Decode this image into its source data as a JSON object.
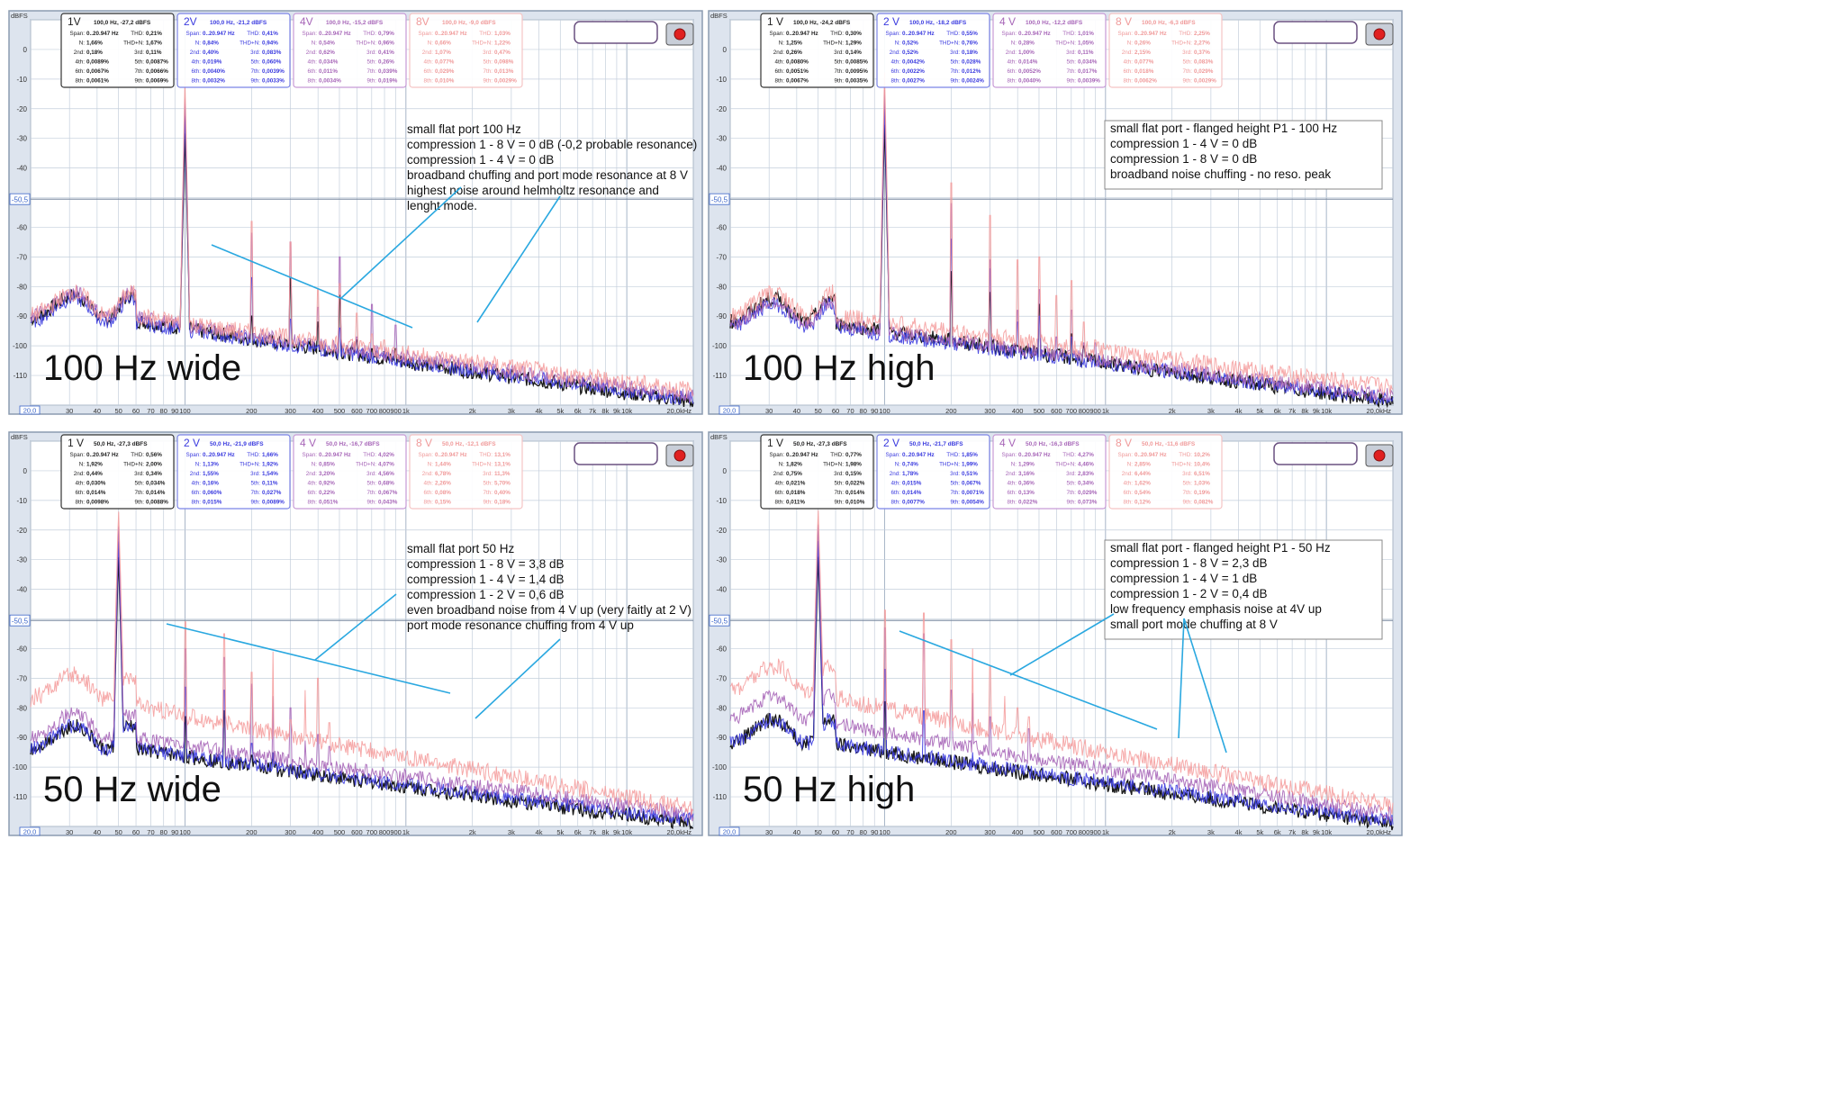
{
  "colors": {
    "v1": "#000000",
    "v2": "#3a3adf",
    "v4": "#a766b8",
    "v8": "#f59a9a",
    "arrow": "#2aa8e0",
    "grid": "#c4cfdc",
    "plot_bg": "#ffffff",
    "frame_bg": "#dde4ee",
    "record": "#e02020"
  },
  "common": {
    "yunit": "dBFS",
    "y_ticks": [
      "0",
      "-10",
      "-20",
      "-30",
      "-40",
      "-60",
      "-70",
      "-80",
      "-90",
      "-100",
      "-110"
    ],
    "y_tick_values": [
      0,
      -10,
      -20,
      -30,
      -40,
      -60,
      -70,
      -80,
      -90,
      -100,
      -110
    ],
    "marker_label": "-50,5",
    "marker_value": -50.5,
    "x_start_label": "20,0",
    "x_end_label": "20,0kHz",
    "x_ticks": [
      {
        "l": "30",
        "v": 30
      },
      {
        "l": "40",
        "v": 40
      },
      {
        "l": "50",
        "v": 50
      },
      {
        "l": "60",
        "v": 60
      },
      {
        "l": "70",
        "v": 70
      },
      {
        "l": "80",
        "v": 80
      },
      {
        "l": "90",
        "v": 90
      },
      {
        "l": "100",
        "v": 100
      },
      {
        "l": "200",
        "v": 200
      },
      {
        "l": "300",
        "v": 300
      },
      {
        "l": "400",
        "v": 400
      },
      {
        "l": "500",
        "v": 500
      },
      {
        "l": "600",
        "v": 600
      },
      {
        "l": "700",
        "v": 700
      },
      {
        "l": "800",
        "v": 800
      },
      {
        "l": "900",
        "v": 900
      },
      {
        "l": "1k",
        "v": 1000
      },
      {
        "l": "2k",
        "v": 2000
      },
      {
        "l": "3k",
        "v": 3000
      },
      {
        "l": "4k",
        "v": 4000
      },
      {
        "l": "5k",
        "v": 5000
      },
      {
        "l": "6k",
        "v": 6000
      },
      {
        "l": "7k",
        "v": 7000
      },
      {
        "l": "8k",
        "v": 8000
      },
      {
        "l": "9k",
        "v": 9000
      },
      {
        "l": "10k",
        "v": 10000
      }
    ],
    "stat_keys": [
      "Span:",
      "THD:",
      "N:",
      "THD+N:",
      "2nd:",
      "3rd:",
      "4th:",
      "5th:",
      "6th:",
      "7th:",
      "8th:",
      "9th:"
    ]
  },
  "chart_data": [
    {
      "type": "line",
      "fundamental_hz": 100,
      "xscale": "log",
      "xlim": [
        20,
        20000
      ],
      "ylim": [
        -120,
        10
      ],
      "label": "100 Hz wide",
      "annotation": [
        "small flat port 100 Hz",
        "compression 1 - 8 V = 0 dB (-0,2 probable resonance)",
        "compression 1 - 4 V = 0 dB",
        "broadband chuffing and port mode resonance at 8 V",
        "highest noise around helmholtz resonance and",
        "lenght mode."
      ],
      "boxed": false,
      "panels": [
        {
          "name": "1V",
          "head": "100,0 Hz, -27,2 dBFS",
          "vals": [
            "0..20.947 Hz",
            "0,21%",
            "1,66%",
            "1,67%",
            "0,18%",
            "0,11%",
            "0,0089%",
            "0,0087%",
            "0,0067%",
            "0,0066%",
            "0,0061%",
            "0,0069%"
          ]
        },
        {
          "name": "2V",
          "head": "100,0 Hz, -21,2 dBFS",
          "vals": [
            "0..20.947 Hz",
            "0,41%",
            "0,84%",
            "0,94%",
            "0,40%",
            "0,083%",
            "0,019%",
            "0,060%",
            "0,0040%",
            "0,0039%",
            "0,0032%",
            "0,0033%"
          ]
        },
        {
          "name": "4V",
          "head": "100,0 Hz, -15,2 dBFS",
          "vals": [
            "0..20.947 Hz",
            "0,79%",
            "0,54%",
            "0,96%",
            "0,62%",
            "0,41%",
            "0,034%",
            "0,26%",
            "0,011%",
            "0,039%",
            "0,0034%",
            "0,019%"
          ]
        },
        {
          "name": "8V",
          "head": "100,0 Hz, -9,0 dBFS",
          "vals": [
            "0..20.947 Hz",
            "1,03%",
            "0,66%",
            "1,22%",
            "1,07%",
            "0,47%",
            "0,077%",
            "0,098%",
            "0,029%",
            "0,013%",
            "0,010%",
            "0,0029%"
          ]
        }
      ],
      "series": [
        {
          "name": "1V",
          "fund_level": -27.2,
          "floor_low": -85,
          "floor_high": -119,
          "harmonics_db": [
            -90,
            -77,
            -92,
            -83,
            -98,
            -101,
            -102,
            -101
          ]
        },
        {
          "name": "2V",
          "fund_level": -21.2,
          "floor_low": -86,
          "floor_high": -118,
          "harmonics_db": [
            -77,
            -91,
            -104,
            -94,
            -117,
            -117,
            -119,
            -119
          ]
        },
        {
          "name": "4V",
          "fund_level": -15.2,
          "floor_low": -84,
          "floor_high": -117,
          "harmonics_db": [
            -62,
            -65,
            -87,
            -70,
            -97,
            -86,
            -108,
            -93
          ]
        },
        {
          "name": "8V",
          "fund_level": -9.0,
          "floor_low": -84,
          "floor_high": -115,
          "harmonics_db": [
            -58,
            -65,
            -81,
            -79,
            -89,
            -96,
            -98,
            -110
          ]
        }
      ]
    },
    {
      "type": "line",
      "fundamental_hz": 100,
      "xscale": "log",
      "xlim": [
        20,
        20000
      ],
      "ylim": [
        -120,
        10
      ],
      "label": "100 Hz high",
      "annotation": [
        "small flat port - flanged height P1 - 100 Hz",
        "compression 1 - 4 V = 0 dB",
        "compression 1 - 8 V = 0 dB",
        "broadband noise chuffing - no reso. peak"
      ],
      "boxed": true,
      "panels": [
        {
          "name": "1 V",
          "head": "100,0 Hz, -24,2 dBFS",
          "vals": [
            "0..20.947 Hz",
            "0,30%",
            "1,25%",
            "1,29%",
            "0,26%",
            "0,14%",
            "0,0080%",
            "0,0085%",
            "0,0051%",
            "0,0095%",
            "0,0067%",
            "0,0035%"
          ]
        },
        {
          "name": "2 V",
          "head": "100,0 Hz, -18,2 dBFS",
          "vals": [
            "0..20.947 Hz",
            "0,55%",
            "0,52%",
            "0,76%",
            "0,52%",
            "0,18%",
            "0,0042%",
            "0,028%",
            "0,0022%",
            "0,012%",
            "0,0027%",
            "0,0024%"
          ]
        },
        {
          "name": "4 V",
          "head": "100,0 Hz, -12,2 dBFS",
          "vals": [
            "0..20.947 Hz",
            "1,01%",
            "0,28%",
            "1,05%",
            "1,00%",
            "0,11%",
            "0,014%",
            "0,034%",
            "0,0052%",
            "0,017%",
            "0,0040%",
            "0,0039%"
          ]
        },
        {
          "name": "8 V",
          "head": "100,0 Hz, -6,3 dBFS",
          "vals": [
            "0..20.947 Hz",
            "2,25%",
            "0,26%",
            "2,27%",
            "2,15%",
            "0,37%",
            "0,077%",
            "0,083%",
            "0,018%",
            "0,029%",
            "0,0062%",
            "0,0029%"
          ]
        }
      ],
      "series": [
        {
          "name": "1 V",
          "fund_level": -24.2,
          "floor_low": -86,
          "floor_high": -119,
          "harmonics_db": [
            -75,
            -82,
            -100,
            -86,
            -102,
            -96,
            -100,
            -108
          ]
        },
        {
          "name": "2 V",
          "fund_level": -18.2,
          "floor_low": -88,
          "floor_high": -118,
          "harmonics_db": [
            -64,
            -74,
            -92,
            -90,
            -112,
            -97,
            -110,
            -110
          ]
        },
        {
          "name": "4 V",
          "fund_level": -12.2,
          "floor_low": -87,
          "floor_high": -117,
          "harmonics_db": [
            -52,
            -71,
            -88,
            -81,
            -97,
            -88,
            -99,
            -99
          ]
        },
        {
          "name": "8 V",
          "fund_level": -6.3,
          "floor_low": -84,
          "floor_high": -114,
          "harmonics_db": [
            -45,
            -56,
            -71,
            -70,
            -83,
            -78,
            -92,
            -98
          ]
        }
      ]
    },
    {
      "type": "line",
      "fundamental_hz": 50,
      "xscale": "log",
      "xlim": [
        20,
        20000
      ],
      "ylim": [
        -120,
        10
      ],
      "label": "50 Hz wide",
      "annotation": [
        "small flat port 50 Hz",
        "compression 1 - 8 V = 3,8 dB",
        "compression 1 - 4 V = 1,4 dB",
        "compression 1 - 2 V = 0,6 dB",
        "even broadband noise from 4 V up (very faitly at 2 V)",
        "port mode resonance chuffing from 4 V up"
      ],
      "boxed": false,
      "panels": [
        {
          "name": "1 V",
          "head": "50,0 Hz, -27,3 dBFS",
          "vals": [
            "0..20.947 Hz",
            "0,56%",
            "1,92%",
            "2,00%",
            "0,44%",
            "0,34%",
            "0,030%",
            "0,034%",
            "0,014%",
            "0,014%",
            "0,0098%",
            "0,0088%"
          ]
        },
        {
          "name": "2 V",
          "head": "50,0 Hz, -21,9 dBFS",
          "vals": [
            "0..20.947 Hz",
            "1,66%",
            "1,13%",
            "1,92%",
            "1,55%",
            "1,54%",
            "0,16%",
            "0,11%",
            "0,060%",
            "0,027%",
            "0,015%",
            "0,0089%"
          ]
        },
        {
          "name": "4 V",
          "head": "50,0 Hz, -16,7 dBFS",
          "vals": [
            "0..20.947 Hz",
            "4,02%",
            "0,85%",
            "4,07%",
            "3,20%",
            "4,56%",
            "0,92%",
            "0,68%",
            "0,22%",
            "0,067%",
            "0,051%",
            "0,043%"
          ]
        },
        {
          "name": "8 V",
          "head": "50,0 Hz, -12,1 dBFS",
          "vals": [
            "0..20.947 Hz",
            "13,1%",
            "1,44%",
            "13,1%",
            "6,78%",
            "11,3%",
            "2,26%",
            "5,70%",
            "0,08%",
            "0,40%",
            "0,15%",
            "0,18%"
          ]
        }
      ],
      "series": [
        {
          "name": "1 V",
          "fund_level": -27.3,
          "floor_low": -88,
          "floor_high": -119,
          "harmonics_db": [
            -83,
            -81,
            -96,
            -95,
            -100,
            -101,
            -105,
            -105
          ]
        },
        {
          "name": "2 V",
          "fund_level": -21.9,
          "floor_low": -88,
          "floor_high": -118,
          "harmonics_db": [
            -73,
            -74,
            -92,
            -95,
            -100,
            -106,
            -112,
            -112
          ]
        },
        {
          "name": "4 V",
          "fund_level": -16.7,
          "floor_low": -84,
          "floor_high": -116,
          "harmonics_db": [
            -60,
            -63,
            -72,
            -76,
            -80,
            -91,
            -89,
            -93
          ]
        },
        {
          "name": "8 V",
          "fund_level": -12.1,
          "floor_low": -71,
          "floor_high": -114,
          "harmonics_db": [
            -51,
            -55,
            -68,
            -61,
            -84,
            -74,
            -70,
            -85
          ]
        }
      ]
    },
    {
      "type": "line",
      "fundamental_hz": 50,
      "xscale": "log",
      "xlim": [
        20,
        20000
      ],
      "ylim": [
        -120,
        10
      ],
      "label": "50 Hz high",
      "annotation": [
        "small flat port - flanged height P1 - 50 Hz",
        "compression 1 - 8 V = 2,3 dB",
        "compression 1 - 4 V = 1 dB",
        "compression 1 - 2 V = 0,4 dB",
        "low frequency emphasis noise at 4V up",
        "small port mode chuffing at 8 V"
      ],
      "boxed": true,
      "panels": [
        {
          "name": "1 V",
          "head": "50,0 Hz, -27,3 dBFS",
          "vals": [
            "0..20.947 Hz",
            "0,77%",
            "1,82%",
            "1,98%",
            "0,75%",
            "0,15%",
            "0,021%",
            "0,022%",
            "0,018%",
            "0,014%",
            "0,011%",
            "0,010%"
          ]
        },
        {
          "name": "2 V",
          "head": "50,0 Hz, -21,7 dBFS",
          "vals": [
            "0..20.947 Hz",
            "1,85%",
            "0,74%",
            "1,99%",
            "1,78%",
            "0,51%",
            "0,015%",
            "0,067%",
            "0,014%",
            "0,0071%",
            "0,0077%",
            "0,0054%"
          ]
        },
        {
          "name": "4 V",
          "head": "50,0 Hz, -16,3 dBFS",
          "vals": [
            "0..20.947 Hz",
            "4,27%",
            "1,29%",
            "4,46%",
            "3,16%",
            "2,83%",
            "0,36%",
            "0,34%",
            "0,13%",
            "0,029%",
            "0,022%",
            "0,073%"
          ]
        },
        {
          "name": "8 V",
          "head": "50,0 Hz, -11,6 dBFS",
          "vals": [
            "0..20.947 Hz",
            "10,2%",
            "2,85%",
            "10,4%",
            "6,44%",
            "6,51%",
            "1,62%",
            "1,03%",
            "0,54%",
            "0,19%",
            "0,12%",
            "0,082%"
          ]
        }
      ],
      "series": [
        {
          "name": "1 V",
          "fund_level": -27.3,
          "floor_low": -86,
          "floor_high": -119,
          "harmonics_db": [
            -78,
            -96,
            -100,
            -100,
            -102,
            -104,
            -106,
            -107
          ]
        },
        {
          "name": "2 V",
          "fund_level": -21.7,
          "floor_low": -86,
          "floor_high": -118,
          "harmonics_db": [
            -67,
            -81,
            -109,
            -95,
            -108,
            -111,
            -112,
            -116
          ]
        },
        {
          "name": "4 V",
          "fund_level": -16.3,
          "floor_low": -78,
          "floor_high": -116,
          "harmonics_db": [
            -53,
            -55,
            -74,
            -75,
            -83,
            -94,
            -97,
            -87
          ]
        },
        {
          "name": "8 V",
          "fund_level": -11.6,
          "floor_low": -68,
          "floor_high": -113,
          "harmonics_db": [
            -47,
            -48,
            -57,
            -60,
            -66,
            -76,
            -80,
            -83
          ]
        }
      ]
    }
  ]
}
